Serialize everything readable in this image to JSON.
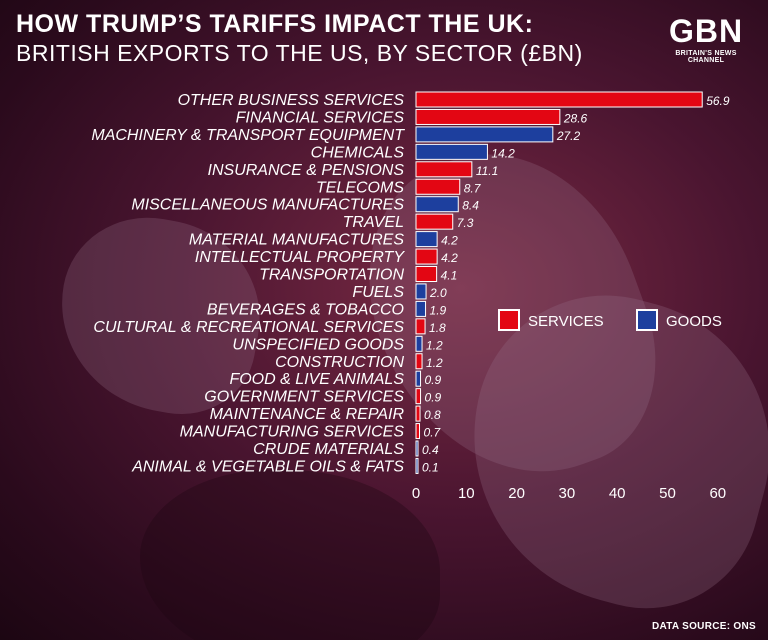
{
  "header": {
    "title": "HOW TRUMP’S TARIFFS IMPACT THE UK:",
    "subtitle": "BRITISH EXPORTS TO THE US, BY SECTOR (£BN)"
  },
  "logo": {
    "text": "GBN",
    "tagline": "BRITAIN'S NEWS CHANNEL"
  },
  "footer": {
    "source": "DATA SOURCE: ONS"
  },
  "chart_data": {
    "type": "bar",
    "orientation": "horizontal",
    "title": "HOW TRUMP’S TARIFFS IMPACT THE UK:",
    "subtitle": "BRITISH EXPORTS TO THE US, BY SECTOR (£BN)",
    "xlim": [
      0,
      60
    ],
    "xticks": [
      0,
      10,
      20,
      30,
      40,
      50,
      60
    ],
    "grid": false,
    "legend_position": "right",
    "colors": {
      "SERVICES": "#e30613",
      "GOODS": "#1d3f9e"
    },
    "legend": [
      "SERVICES",
      "GOODS"
    ],
    "categories": [
      "OTHER BUSINESS SERVICES",
      "FINANCIAL SERVICES",
      "MACHINERY & TRANSPORT EQUIPMENT",
      "CHEMICALS",
      "INSURANCE & PENSIONS",
      "TELECOMS",
      "MISCELLANEOUS MANUFACTURES",
      "TRAVEL",
      "MATERIAL MANUFACTURES",
      "INTELLECTUAL PROPERTY",
      "TRANSPORTATION",
      "FUELS",
      "BEVERAGES & TOBACCO",
      "CULTURAL & RECREATIONAL SERVICES",
      "UNSPECIFIED GOODS",
      "CONSTRUCTION",
      "FOOD & LIVE ANIMALS",
      "GOVERNMENT SERVICES",
      "MAINTENANCE & REPAIR",
      "MANUFACTURING SERVICES",
      "CRUDE MATERIALS",
      "ANIMAL & VEGETABLE OILS & FATS"
    ],
    "values": [
      56.9,
      28.6,
      27.2,
      14.2,
      11.1,
      8.7,
      8.4,
      7.3,
      4.2,
      4.2,
      4.1,
      2.0,
      1.9,
      1.8,
      1.2,
      1.2,
      0.9,
      0.9,
      0.8,
      0.7,
      0.4,
      0.1
    ],
    "value_labels": [
      "56.9",
      "28.6",
      "27.2",
      "14.2",
      "11.1",
      "8.7",
      "8.4",
      "7.3",
      "4.2",
      "4.2",
      "4.1",
      "2.0",
      "1.9",
      "1.8",
      "1.2",
      "1.2",
      "0.9",
      "0.9",
      "0.8",
      "0.7",
      "0.4",
      "0.1"
    ],
    "types": [
      "SERVICES",
      "SERVICES",
      "GOODS",
      "GOODS",
      "SERVICES",
      "SERVICES",
      "GOODS",
      "SERVICES",
      "GOODS",
      "SERVICES",
      "SERVICES",
      "GOODS",
      "GOODS",
      "SERVICES",
      "GOODS",
      "SERVICES",
      "GOODS",
      "SERVICES",
      "SERVICES",
      "SERVICES",
      "GOODS",
      "GOODS"
    ]
  }
}
